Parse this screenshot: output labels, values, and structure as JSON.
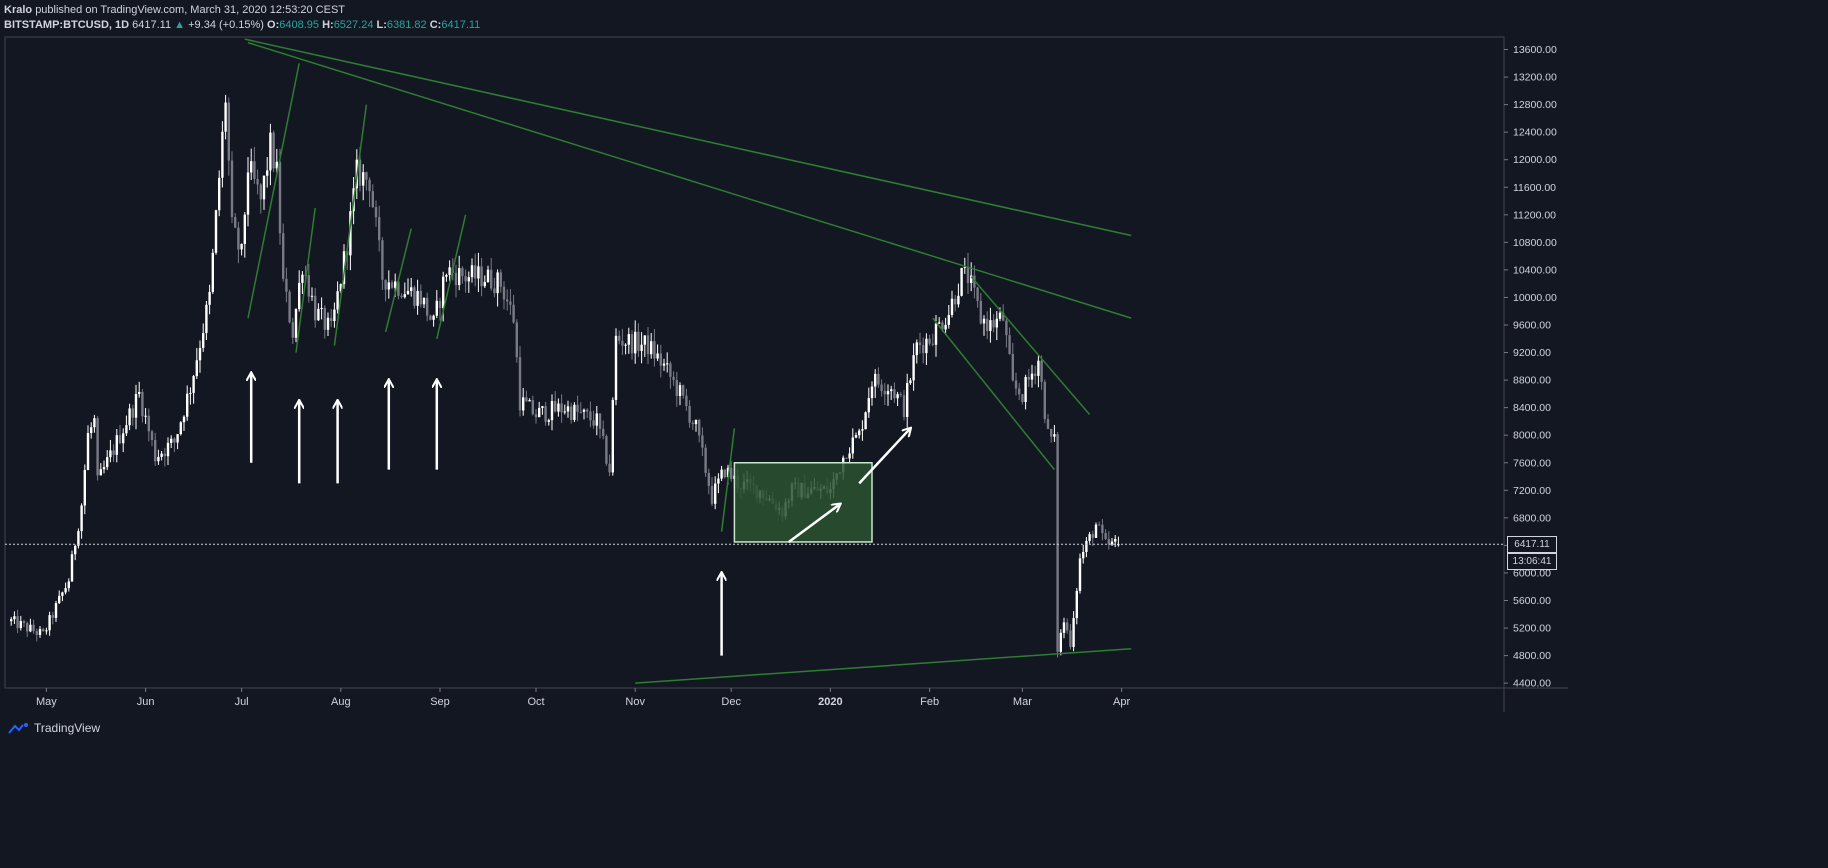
{
  "header": {
    "line1_author": "Kralo",
    "line1_rest": "published on TradingView.com, March 31, 2020 12:53:20 CEST",
    "symbol": "BITSTAMP:BTCUSD, 1D",
    "last": "6417.11",
    "change": "+9.34 (+0.15%)",
    "o_label": "O:",
    "o_value": "6408.95",
    "h_label": "H:",
    "h_value": "6527.24",
    "l_label": "L:",
    "l_value": "6381.82",
    "c_label": "C:",
    "c_value": "6417.11"
  },
  "footer": {
    "brand": "TradingView"
  },
  "price_tags": {
    "last_price": "6417.11",
    "countdown": "13:06:41"
  },
  "colors": {
    "background": "#131722",
    "candle_up": "#ffffff",
    "candle_down": "#787b86",
    "trendline": "#2e7d32",
    "zone_fill": "#2c5430",
    "zone_border": "#c8e6c9",
    "arrow": "#ffffff",
    "text": "#d1d4dc"
  },
  "chart_data": {
    "type": "candlestick",
    "symbol": "BITSTAMP:BTCUSD",
    "interval": "1D",
    "ylim": [
      4400,
      13800
    ],
    "y_ticks": [
      "13600.00",
      "13200.00",
      "12800.00",
      "12400.00",
      "12000.00",
      "11600.00",
      "11200.00",
      "10800.00",
      "10400.00",
      "10000.00",
      "9600.00",
      "9200.00",
      "8800.00",
      "8400.00",
      "8000.00",
      "7600.00",
      "7200.00",
      "6800.00",
      "6400.00",
      "6000.00",
      "5600.00",
      "5200.00",
      "4800.00",
      "4400.00"
    ],
    "x_ticks": [
      {
        "label": "May",
        "date": "2019-05-01"
      },
      {
        "label": "Jun",
        "date": "2019-06-01"
      },
      {
        "label": "Jul",
        "date": "2019-07-01"
      },
      {
        "label": "Aug",
        "date": "2019-08-01"
      },
      {
        "label": "Sep",
        "date": "2019-09-01"
      },
      {
        "label": "Oct",
        "date": "2019-10-01"
      },
      {
        "label": "Nov",
        "date": "2019-11-01"
      },
      {
        "label": "Dec",
        "date": "2019-12-01"
      },
      {
        "label": "2020",
        "date": "2020-01-01"
      },
      {
        "label": "Feb",
        "date": "2020-02-01"
      },
      {
        "label": "Mar",
        "date": "2020-03-01"
      },
      {
        "label": "Apr",
        "date": "2020-04-01"
      }
    ],
    "last_price": 6417.11,
    "close_anchors": [
      [
        "2019-04-20",
        5300
      ],
      [
        "2019-04-30",
        5100
      ],
      [
        "2019-05-08",
        5900
      ],
      [
        "2019-05-12",
        7000
      ],
      [
        "2019-05-14",
        8000
      ],
      [
        "2019-05-16",
        8200
      ],
      [
        "2019-05-17",
        7300
      ],
      [
        "2019-05-24",
        8000
      ],
      [
        "2019-05-30",
        8600
      ],
      [
        "2019-06-04",
        7700
      ],
      [
        "2019-06-10",
        7900
      ],
      [
        "2019-06-15",
        8700
      ],
      [
        "2019-06-21",
        10000
      ],
      [
        "2019-06-26",
        12900
      ],
      [
        "2019-06-28",
        11000
      ],
      [
        "2019-07-01",
        10600
      ],
      [
        "2019-07-03",
        11900
      ],
      [
        "2019-07-07",
        11400
      ],
      [
        "2019-07-10",
        12200
      ],
      [
        "2019-07-12",
        11800
      ],
      [
        "2019-07-14",
        10200
      ],
      [
        "2019-07-17",
        9500
      ],
      [
        "2019-07-20",
        10500
      ],
      [
        "2019-07-24",
        9800
      ],
      [
        "2019-07-29",
        9500
      ],
      [
        "2019-08-03",
        10800
      ],
      [
        "2019-08-06",
        11800
      ],
      [
        "2019-08-10",
        11700
      ],
      [
        "2019-08-14",
        10300
      ],
      [
        "2019-08-18",
        10200
      ],
      [
        "2019-08-22",
        10100
      ],
      [
        "2019-08-26",
        10000
      ],
      [
        "2019-08-30",
        9600
      ],
      [
        "2019-09-03",
        10400
      ],
      [
        "2019-09-09",
        10300
      ],
      [
        "2019-09-15",
        10300
      ],
      [
        "2019-09-20",
        10200
      ],
      [
        "2019-09-24",
        9700
      ],
      [
        "2019-09-26",
        8500
      ],
      [
        "2019-10-01",
        8300
      ],
      [
        "2019-10-10",
        8400
      ],
      [
        "2019-10-20",
        8200
      ],
      [
        "2019-10-24",
        7500
      ],
      [
        "2019-10-26",
        9400
      ],
      [
        "2019-11-05",
        9300
      ],
      [
        "2019-11-10",
        9000
      ],
      [
        "2019-11-15",
        8600
      ],
      [
        "2019-11-20",
        8100
      ],
      [
        "2019-11-25",
        7100
      ],
      [
        "2019-11-29",
        7500
      ],
      [
        "2019-12-03",
        7300
      ],
      [
        "2019-12-10",
        7200
      ],
      [
        "2019-12-17",
        6900
      ],
      [
        "2019-12-20",
        7200
      ],
      [
        "2019-12-26",
        7200
      ],
      [
        "2020-01-01",
        7200
      ],
      [
        "2020-01-06",
        7800
      ],
      [
        "2020-01-10",
        8000
      ],
      [
        "2020-01-14",
        8800
      ],
      [
        "2020-01-20",
        8700
      ],
      [
        "2020-01-24",
        8400
      ],
      [
        "2020-01-28",
        9300
      ],
      [
        "2020-02-01",
        9400
      ],
      [
        "2020-02-07",
        9800
      ],
      [
        "2020-02-11",
        10300
      ],
      [
        "2020-02-13",
        10300
      ],
      [
        "2020-02-17",
        9700
      ],
      [
        "2020-02-20",
        9600
      ],
      [
        "2020-02-24",
        9700
      ],
      [
        "2020-02-27",
        8700
      ],
      [
        "2020-03-01",
        8600
      ],
      [
        "2020-03-06",
        9100
      ],
      [
        "2020-03-09",
        8000
      ],
      [
        "2020-03-11",
        7900
      ],
      [
        "2020-03-12",
        4900
      ],
      [
        "2020-03-14",
        5300
      ],
      [
        "2020-03-16",
        5000
      ],
      [
        "2020-03-19",
        6200
      ],
      [
        "2020-03-24",
        6700
      ],
      [
        "2020-03-27",
        6400
      ],
      [
        "2020-03-31",
        6417
      ]
    ],
    "annotations": [
      {
        "type": "trendline",
        "from": [
          "2019-07-02",
          13750
        ],
        "to": [
          "2020-04-04",
          10900
        ]
      },
      {
        "type": "trendline",
        "from": [
          "2019-07-03",
          13700
        ],
        "to": [
          "2020-04-04",
          9700
        ]
      },
      {
        "type": "trendline",
        "from": [
          "2020-02-14",
          10300
        ],
        "to": [
          "2020-03-22",
          8300
        ]
      },
      {
        "type": "trendline",
        "from": [
          "2020-02-02",
          9700
        ],
        "to": [
          "2020-03-11",
          7500
        ]
      },
      {
        "type": "trendline",
        "from": [
          "2019-11-01",
          4400
        ],
        "to": [
          "2020-04-04",
          4900
        ]
      },
      {
        "type": "trendline",
        "from": [
          "2019-07-03",
          9700
        ],
        "to": [
          "2019-07-19",
          13400
        ]
      },
      {
        "type": "trendline",
        "from": [
          "2019-07-18",
          9200
        ],
        "to": [
          "2019-07-24",
          11300
        ]
      },
      {
        "type": "trendline",
        "from": [
          "2019-07-30",
          9300
        ],
        "to": [
          "2019-08-09",
          12800
        ]
      },
      {
        "type": "trendline",
        "from": [
          "2019-08-15",
          9500
        ],
        "to": [
          "2019-08-23",
          11000
        ]
      },
      {
        "type": "trendline",
        "from": [
          "2019-08-31",
          9400
        ],
        "to": [
          "2019-09-09",
          11200
        ]
      },
      {
        "type": "trendline",
        "from": [
          "2019-11-28",
          6600
        ],
        "to": [
          "2019-12-02",
          8100
        ]
      },
      {
        "type": "rectangle",
        "from": [
          "2019-12-02",
          7600
        ],
        "to": [
          "2020-01-14",
          6450
        ]
      },
      {
        "type": "arrow",
        "from": [
          "2020-01-10",
          7300
        ],
        "to": [
          "2020-01-26",
          8100
        ]
      },
      {
        "type": "arrow",
        "from": [
          "2019-12-19",
          6450
        ],
        "to": [
          "2020-01-04",
          7000
        ]
      },
      {
        "type": "arrow",
        "from": [
          "2019-07-04",
          7600
        ],
        "to": [
          "2019-07-04",
          8900
        ]
      },
      {
        "type": "arrow",
        "from": [
          "2019-07-19",
          7300
        ],
        "to": [
          "2019-07-19",
          8500
        ]
      },
      {
        "type": "arrow",
        "from": [
          "2019-07-31",
          7300
        ],
        "to": [
          "2019-07-31",
          8500
        ]
      },
      {
        "type": "arrow",
        "from": [
          "2019-08-16",
          7500
        ],
        "to": [
          "2019-08-16",
          8800
        ]
      },
      {
        "type": "arrow",
        "from": [
          "2019-08-31",
          7500
        ],
        "to": [
          "2019-08-31",
          8800
        ]
      },
      {
        "type": "arrow",
        "from": [
          "2019-11-28",
          4800
        ],
        "to": [
          "2019-11-28",
          6000
        ]
      }
    ]
  }
}
